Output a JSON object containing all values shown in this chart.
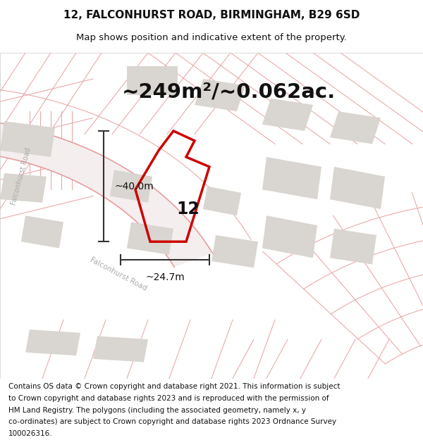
{
  "title_line1": "12, FALCONHURST ROAD, BIRMINGHAM, B29 6SD",
  "title_line2": "Map shows position and indicative extent of the property.",
  "area_text": "~249m²/~0.062ac.",
  "label_number": "12",
  "dim_height": "~40.0m",
  "dim_width": "~24.7m",
  "road_label": "Falconhurst Road",
  "road_label2": "Falconhurst Road",
  "footer_text": "Contains OS data © Crown copyright and database right 2021. This information is subject to Crown copyright and database rights 2023 and is reproduced with the permission of HM Land Registry. The polygons (including the associated geometry, namely x, y co-ordinates) are subject to Crown copyright and database rights 2023 Ordnance Survey 100026316.",
  "bg_color": "#ffffff",
  "map_bg": "#f7f4f2",
  "building_color": "#d9d5d0",
  "road_line_color": "#e8a0a0",
  "road_fill_color": "#f5eeee",
  "property_color": "#cc0000",
  "dim_line_color": "#333333",
  "title_fontsize": 11,
  "subtitle_fontsize": 9.5,
  "area_fontsize": 20,
  "label_fontsize": 16,
  "footer_fontsize": 7.5
}
